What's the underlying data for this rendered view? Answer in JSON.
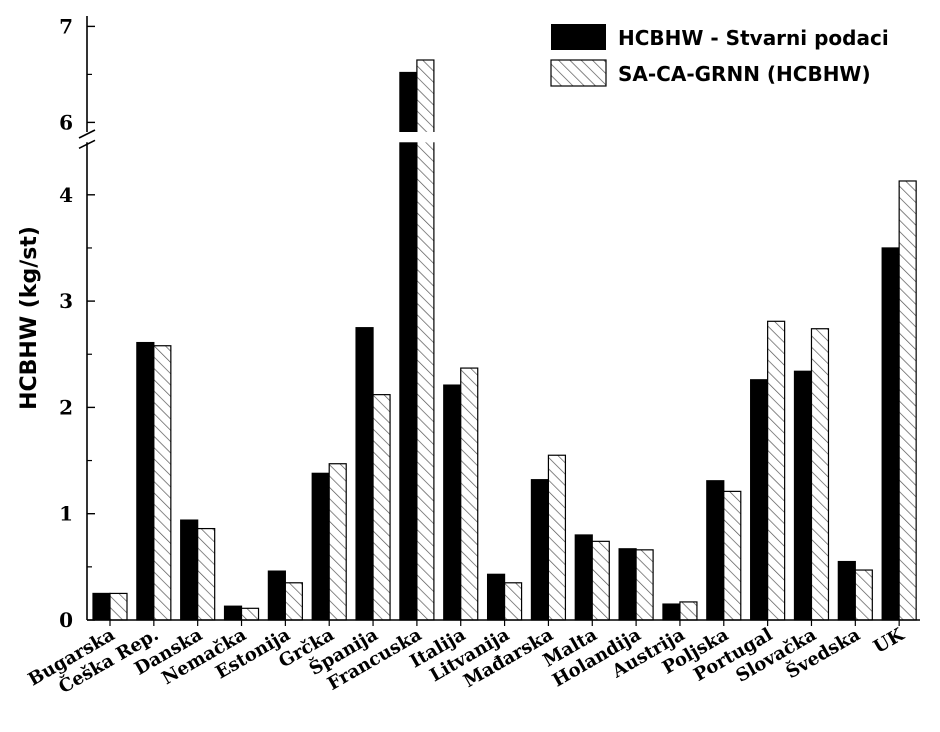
{
  "chart_data": {
    "type": "bar",
    "ylabel": "HCBHW (kg/st)",
    "xlabel": "",
    "title": "",
    "categories": [
      "Bugarska",
      "Češka Rep.",
      "Danska",
      "Nemačka",
      "Estonija",
      "Grčka",
      "Španija",
      "Francuska",
      "Italija",
      "Litvanija",
      "Mađarska",
      "Malta",
      "Holandija",
      "Austrija",
      "Poljska",
      "Portugal",
      "Slovačka",
      "Švedska",
      "UK"
    ],
    "series": [
      {
        "name": "HCBHW - Stvarni podaci",
        "values": [
          0.25,
          2.61,
          0.94,
          0.13,
          0.46,
          1.38,
          2.75,
          6.52,
          2.21,
          0.43,
          1.32,
          0.8,
          0.67,
          0.15,
          1.31,
          2.26,
          2.34,
          0.55,
          3.5
        ]
      },
      {
        "name": "SA-CA-GRNN (HCBHW)",
        "values": [
          0.25,
          2.58,
          0.86,
          0.11,
          0.35,
          1.47,
          2.12,
          6.65,
          2.37,
          0.35,
          1.55,
          0.74,
          0.66,
          0.17,
          1.21,
          2.81,
          2.74,
          0.47,
          4.13
        ]
      }
    ],
    "y_axis_break": {
      "lower_range": [
        0,
        4.4
      ],
      "upper_range": [
        5.9,
        7.1
      ]
    },
    "y_ticks": [
      0,
      1,
      2,
      3,
      4,
      6,
      7
    ],
    "legend_position": "top-right",
    "series_styles": [
      "solid-black",
      "diagonal-hatch"
    ],
    "colors": {
      "bar_fill": "#000000",
      "hatch": "#555555",
      "axis": "#000000"
    }
  }
}
